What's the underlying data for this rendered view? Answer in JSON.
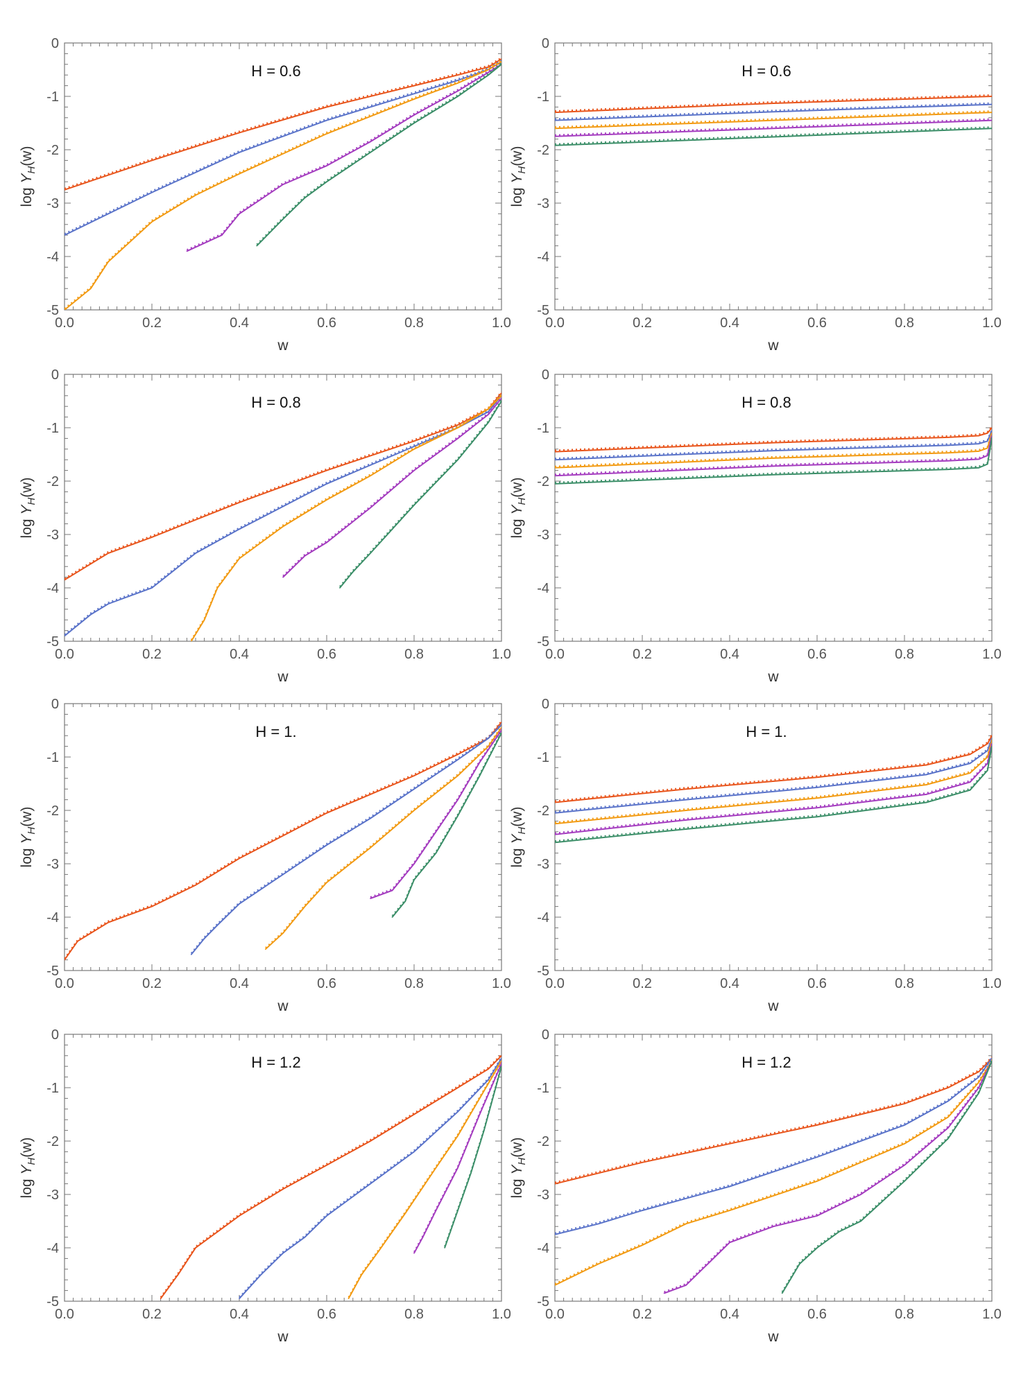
{
  "figure": {
    "x_label": "w",
    "y_label_prefix": "log Y",
    "y_label_sub": "H",
    "y_label_suffix": "(w)"
  },
  "colors": [
    "#E8541B",
    "#5A73C9",
    "#F29A12",
    "#A43CBF",
    "#3B8E68"
  ],
  "chart_data": [
    {
      "type": "line",
      "title": "H = 0.6",
      "xlabel": "w",
      "ylabel": "log Y_H(w)",
      "xlim": [
        0,
        1
      ],
      "ylim": [
        -5,
        0
      ],
      "x_ticks": [
        "0.0",
        "0.2",
        "0.4",
        "0.6",
        "0.8",
        "1.0"
      ],
      "y_ticks": [
        "0",
        "-1",
        "-2",
        "-3",
        "-4",
        "-5"
      ],
      "series": [
        {
          "x": [
            0,
            0.2,
            0.4,
            0.6,
            0.8,
            0.9,
            0.97,
            1.0
          ],
          "y": [
            -2.75,
            -2.2,
            -1.68,
            -1.2,
            -0.8,
            -0.6,
            -0.45,
            -0.3
          ]
        },
        {
          "x": [
            0,
            0.2,
            0.4,
            0.6,
            0.8,
            0.9,
            0.97,
            1.0
          ],
          "y": [
            -3.6,
            -2.8,
            -2.05,
            -1.45,
            -0.95,
            -0.7,
            -0.5,
            -0.35
          ]
        },
        {
          "x": [
            0.0,
            0.06,
            0.1,
            0.2,
            0.3,
            0.4,
            0.6,
            0.8,
            0.9,
            0.97,
            1.0
          ],
          "y": [
            -5.0,
            -4.6,
            -4.1,
            -3.35,
            -2.85,
            -2.45,
            -1.7,
            -1.05,
            -0.75,
            -0.5,
            -0.35
          ]
        },
        {
          "x": [
            0.28,
            0.36,
            0.4,
            0.5,
            0.6,
            0.7,
            0.8,
            0.9,
            0.97,
            1.0
          ],
          "y": [
            -3.9,
            -3.6,
            -3.2,
            -2.65,
            -2.3,
            -1.85,
            -1.35,
            -0.9,
            -0.55,
            -0.4
          ]
        },
        {
          "x": [
            0.44,
            0.5,
            0.55,
            0.6,
            0.7,
            0.8,
            0.9,
            0.97,
            1.0
          ],
          "y": [
            -3.8,
            -3.3,
            -2.9,
            -2.6,
            -2.05,
            -1.5,
            -1.0,
            -0.6,
            -0.4
          ]
        }
      ]
    },
    {
      "type": "line",
      "title": "H = 0.6",
      "xlabel": "w",
      "ylabel": "log Y_H(w)",
      "xlim": [
        0,
        1
      ],
      "ylim": [
        -5,
        0
      ],
      "x_ticks": [
        "0.0",
        "0.2",
        "0.4",
        "0.6",
        "0.8",
        "1.0"
      ],
      "y_ticks": [
        "0",
        "-1",
        "-2",
        "-3",
        "-4",
        "-5"
      ],
      "series": [
        {
          "x": [
            0,
            0.5,
            1.0
          ],
          "y": [
            -1.3,
            -1.13,
            -1.0
          ]
        },
        {
          "x": [
            0,
            0.5,
            1.0
          ],
          "y": [
            -1.45,
            -1.29,
            -1.15
          ]
        },
        {
          "x": [
            0,
            0.5,
            1.0
          ],
          "y": [
            -1.6,
            -1.45,
            -1.3
          ]
        },
        {
          "x": [
            0,
            0.5,
            1.0
          ],
          "y": [
            -1.75,
            -1.6,
            -1.45
          ]
        },
        {
          "x": [
            0,
            0.5,
            1.0
          ],
          "y": [
            -1.92,
            -1.76,
            -1.6
          ]
        }
      ]
    },
    {
      "type": "line",
      "title": "H = 0.8",
      "xlabel": "w",
      "ylabel": "log Y_H(w)",
      "xlim": [
        0,
        1
      ],
      "ylim": [
        -5,
        0
      ],
      "x_ticks": [
        "0.0",
        "0.2",
        "0.4",
        "0.6",
        "0.8",
        "1.0"
      ],
      "y_ticks": [
        "0",
        "-1",
        "-2",
        "-3",
        "-4",
        "-5"
      ],
      "series": [
        {
          "x": [
            0,
            0.1,
            0.2,
            0.4,
            0.6,
            0.8,
            0.9,
            0.97,
            1.0
          ],
          "y": [
            -3.85,
            -3.35,
            -3.05,
            -2.4,
            -1.8,
            -1.25,
            -0.95,
            -0.65,
            -0.35
          ]
        },
        {
          "x": [
            0.0,
            0.06,
            0.1,
            0.2,
            0.3,
            0.4,
            0.6,
            0.8,
            0.9,
            0.97,
            1.0
          ],
          "y": [
            -4.9,
            -4.5,
            -4.3,
            -4.0,
            -3.35,
            -2.9,
            -2.05,
            -1.35,
            -1.0,
            -0.7,
            -0.4
          ]
        },
        {
          "x": [
            0.29,
            0.32,
            0.35,
            0.4,
            0.5,
            0.6,
            0.7,
            0.8,
            0.9,
            0.97,
            1.0
          ],
          "y": [
            -5.0,
            -4.6,
            -4.0,
            -3.45,
            -2.85,
            -2.35,
            -1.9,
            -1.4,
            -1.0,
            -0.65,
            -0.4
          ]
        },
        {
          "x": [
            0.5,
            0.55,
            0.6,
            0.7,
            0.8,
            0.9,
            0.97,
            1.0
          ],
          "y": [
            -3.8,
            -3.4,
            -3.15,
            -2.5,
            -1.8,
            -1.2,
            -0.75,
            -0.45
          ]
        },
        {
          "x": [
            0.63,
            0.66,
            0.7,
            0.75,
            0.8,
            0.9,
            0.97,
            1.0
          ],
          "y": [
            -4.0,
            -3.7,
            -3.35,
            -2.9,
            -2.45,
            -1.6,
            -0.9,
            -0.5
          ]
        }
      ]
    },
    {
      "type": "line",
      "title": "H = 0.8",
      "xlabel": "w",
      "ylabel": "log Y_H(w)",
      "xlim": [
        0,
        1
      ],
      "ylim": [
        -5,
        0
      ],
      "x_ticks": [
        "0.0",
        "0.2",
        "0.4",
        "0.6",
        "0.8",
        "1.0"
      ],
      "y_ticks": [
        "0",
        "-1",
        "-2",
        "-3",
        "-4",
        "-5"
      ],
      "series": [
        {
          "x": [
            0,
            0.5,
            0.9,
            0.97,
            0.99,
            1.0
          ],
          "y": [
            -1.45,
            -1.28,
            -1.18,
            -1.15,
            -1.1,
            -1.0
          ]
        },
        {
          "x": [
            0,
            0.5,
            0.9,
            0.97,
            0.99,
            1.0
          ],
          "y": [
            -1.6,
            -1.43,
            -1.33,
            -1.3,
            -1.25,
            -1.05
          ]
        },
        {
          "x": [
            0,
            0.5,
            0.9,
            0.97,
            0.99,
            1.0
          ],
          "y": [
            -1.75,
            -1.57,
            -1.47,
            -1.44,
            -1.38,
            -1.1
          ]
        },
        {
          "x": [
            0,
            0.5,
            0.9,
            0.97,
            0.99,
            1.0
          ],
          "y": [
            -1.9,
            -1.72,
            -1.62,
            -1.59,
            -1.52,
            -1.15
          ]
        },
        {
          "x": [
            0,
            0.5,
            0.9,
            0.97,
            0.99,
            1.0
          ],
          "y": [
            -2.05,
            -1.88,
            -1.78,
            -1.75,
            -1.68,
            -1.2
          ]
        }
      ]
    },
    {
      "type": "line",
      "title": "H = 1.",
      "xlabel": "w",
      "ylabel": "log Y_H(w)",
      "xlim": [
        0,
        1
      ],
      "ylim": [
        -5,
        0
      ],
      "x_ticks": [
        "0.0",
        "0.2",
        "0.4",
        "0.6",
        "0.8",
        "1.0"
      ],
      "y_ticks": [
        "0",
        "-1",
        "-2",
        "-3",
        "-4",
        "-5"
      ],
      "series": [
        {
          "x": [
            0.0,
            0.03,
            0.1,
            0.2,
            0.3,
            0.4,
            0.6,
            0.8,
            0.9,
            0.97,
            1.0
          ],
          "y": [
            -4.8,
            -4.45,
            -4.1,
            -3.8,
            -3.4,
            -2.9,
            -2.05,
            -1.35,
            -0.95,
            -0.65,
            -0.35
          ]
        },
        {
          "x": [
            0.29,
            0.32,
            0.35,
            0.4,
            0.5,
            0.6,
            0.7,
            0.8,
            0.9,
            0.97,
            1.0
          ],
          "y": [
            -4.7,
            -4.4,
            -4.15,
            -3.75,
            -3.2,
            -2.65,
            -2.15,
            -1.6,
            -1.05,
            -0.65,
            -0.4
          ]
        },
        {
          "x": [
            0.46,
            0.5,
            0.55,
            0.6,
            0.7,
            0.8,
            0.9,
            0.97,
            1.0
          ],
          "y": [
            -4.6,
            -4.3,
            -3.8,
            -3.35,
            -2.7,
            -2.0,
            -1.35,
            -0.8,
            -0.45
          ]
        },
        {
          "x": [
            0.7,
            0.75,
            0.8,
            0.85,
            0.9,
            0.95,
            1.0
          ],
          "y": [
            -3.65,
            -3.5,
            -3.0,
            -2.4,
            -1.8,
            -1.1,
            -0.5
          ]
        },
        {
          "x": [
            0.75,
            0.78,
            0.8,
            0.85,
            0.9,
            0.95,
            1.0
          ],
          "y": [
            -4.0,
            -3.7,
            -3.3,
            -2.8,
            -2.1,
            -1.35,
            -0.55
          ]
        }
      ]
    },
    {
      "type": "line",
      "title": "H = 1.",
      "xlabel": "w",
      "ylabel": "log Y_H(w)",
      "xlim": [
        0,
        1
      ],
      "ylim": [
        -5,
        0
      ],
      "x_ticks": [
        "0.0",
        "0.2",
        "0.4",
        "0.6",
        "0.8",
        "1.0"
      ],
      "y_ticks": [
        "0",
        "-1",
        "-2",
        "-3",
        "-4",
        "-5"
      ],
      "series": [
        {
          "x": [
            0,
            0.3,
            0.6,
            0.85,
            0.95,
            0.99,
            1.0
          ],
          "y": [
            -1.85,
            -1.6,
            -1.38,
            -1.15,
            -0.95,
            -0.75,
            -0.6
          ]
        },
        {
          "x": [
            0,
            0.3,
            0.6,
            0.85,
            0.95,
            0.99,
            1.0
          ],
          "y": [
            -2.05,
            -1.8,
            -1.57,
            -1.33,
            -1.12,
            -0.88,
            -0.65
          ]
        },
        {
          "x": [
            0,
            0.3,
            0.6,
            0.85,
            0.95,
            0.99,
            1.0
          ],
          "y": [
            -2.25,
            -2.0,
            -1.77,
            -1.52,
            -1.3,
            -1.0,
            -0.7
          ]
        },
        {
          "x": [
            0,
            0.3,
            0.6,
            0.85,
            0.95,
            0.99,
            1.0
          ],
          "y": [
            -2.45,
            -2.18,
            -1.95,
            -1.7,
            -1.47,
            -1.12,
            -0.75
          ]
        },
        {
          "x": [
            0,
            0.3,
            0.6,
            0.85,
            0.95,
            0.99,
            1.0
          ],
          "y": [
            -2.6,
            -2.35,
            -2.12,
            -1.85,
            -1.62,
            -1.25,
            -0.8
          ]
        }
      ]
    },
    {
      "type": "line",
      "title": "H = 1.2",
      "xlabel": "w",
      "ylabel": "log Y_H(w)",
      "xlim": [
        0,
        1
      ],
      "ylim": [
        -5,
        0
      ],
      "x_ticks": [
        "0.0",
        "0.2",
        "0.4",
        "0.6",
        "0.8",
        "1.0"
      ],
      "y_ticks": [
        "0",
        "-1",
        "-2",
        "-3",
        "-4",
        "-5"
      ],
      "series": [
        {
          "x": [
            0.22,
            0.26,
            0.3,
            0.35,
            0.4,
            0.5,
            0.6,
            0.7,
            0.8,
            0.9,
            0.97,
            1.0
          ],
          "y": [
            -4.95,
            -4.5,
            -4.0,
            -3.7,
            -3.4,
            -2.9,
            -2.45,
            -2.0,
            -1.5,
            -1.0,
            -0.65,
            -0.4
          ]
        },
        {
          "x": [
            0.4,
            0.45,
            0.5,
            0.55,
            0.6,
            0.7,
            0.8,
            0.9,
            0.97,
            1.0
          ],
          "y": [
            -4.95,
            -4.5,
            -4.1,
            -3.8,
            -3.4,
            -2.8,
            -2.2,
            -1.45,
            -0.85,
            -0.45
          ]
        },
        {
          "x": [
            0.65,
            0.68,
            0.72,
            0.78,
            0.85,
            0.9,
            0.95,
            1.0
          ],
          "y": [
            -4.95,
            -4.5,
            -4.05,
            -3.35,
            -2.5,
            -1.9,
            -1.2,
            -0.5
          ]
        },
        {
          "x": [
            0.8,
            0.82,
            0.85,
            0.9,
            0.95,
            1.0
          ],
          "y": [
            -4.1,
            -3.8,
            -3.3,
            -2.5,
            -1.5,
            -0.55
          ]
        },
        {
          "x": [
            0.87,
            0.9,
            0.93,
            0.96,
            1.0
          ],
          "y": [
            -4.0,
            -3.3,
            -2.6,
            -1.8,
            -0.6
          ]
        }
      ]
    },
    {
      "type": "line",
      "title": "H = 1.2",
      "xlabel": "w",
      "ylabel": "log Y_H(w)",
      "xlim": [
        0,
        1
      ],
      "ylim": [
        -5,
        0
      ],
      "x_ticks": [
        "0.0",
        "0.2",
        "0.4",
        "0.6",
        "0.8",
        "1.0"
      ],
      "y_ticks": [
        "0",
        "-1",
        "-2",
        "-3",
        "-4",
        "-5"
      ],
      "series": [
        {
          "x": [
            0,
            0.2,
            0.4,
            0.6,
            0.8,
            0.9,
            0.97,
            1.0
          ],
          "y": [
            -2.8,
            -2.4,
            -2.05,
            -1.7,
            -1.3,
            -1.0,
            -0.7,
            -0.45
          ]
        },
        {
          "x": [
            0,
            0.1,
            0.2,
            0.4,
            0.6,
            0.8,
            0.9,
            0.97,
            1.0
          ],
          "y": [
            -3.75,
            -3.55,
            -3.3,
            -2.85,
            -2.3,
            -1.7,
            -1.25,
            -0.8,
            -0.45
          ]
        },
        {
          "x": [
            0.0,
            0.05,
            0.1,
            0.2,
            0.3,
            0.4,
            0.6,
            0.8,
            0.9,
            0.97,
            1.0
          ],
          "y": [
            -4.7,
            -4.5,
            -4.3,
            -3.95,
            -3.55,
            -3.3,
            -2.75,
            -2.05,
            -1.55,
            -0.9,
            -0.5
          ]
        },
        {
          "x": [
            0.25,
            0.3,
            0.35,
            0.4,
            0.5,
            0.6,
            0.7,
            0.8,
            0.9,
            0.97,
            1.0
          ],
          "y": [
            -4.85,
            -4.7,
            -4.3,
            -3.9,
            -3.6,
            -3.4,
            -3.0,
            -2.45,
            -1.75,
            -1.0,
            -0.5
          ]
        },
        {
          "x": [
            0.52,
            0.56,
            0.6,
            0.65,
            0.7,
            0.8,
            0.9,
            0.97,
            1.0
          ],
          "y": [
            -4.85,
            -4.3,
            -4.0,
            -3.7,
            -3.5,
            -2.75,
            -1.95,
            -1.1,
            -0.5
          ]
        }
      ]
    }
  ]
}
